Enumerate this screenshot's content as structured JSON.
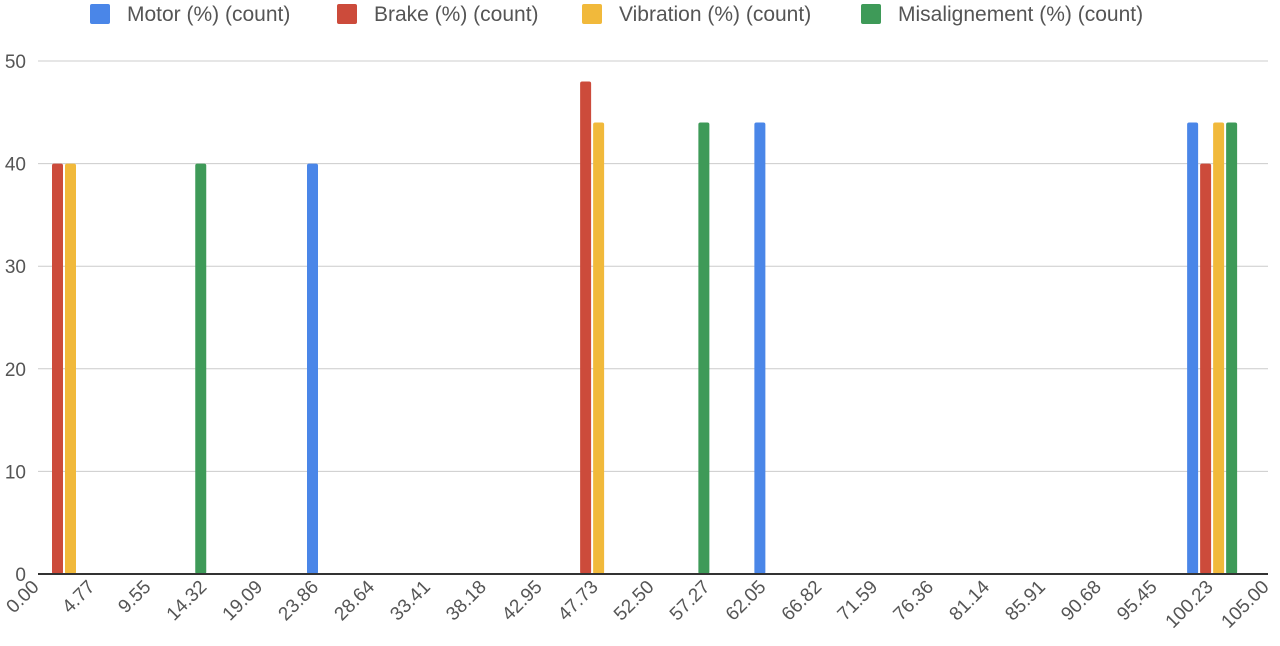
{
  "chart_data": {
    "type": "bar",
    "title": "",
    "xlabel": "",
    "ylabel": "",
    "ylim": [
      0,
      50
    ],
    "xlim": [
      0,
      105
    ],
    "grid": true,
    "legend_position": "top",
    "y_ticks": [
      "0",
      "10",
      "20",
      "30",
      "40",
      "50"
    ],
    "x_ticks": [
      "0.00",
      "4.77",
      "9.55",
      "14.32",
      "19.09",
      "23.86",
      "28.64",
      "33.41",
      "38.18",
      "42.95",
      "47.73",
      "52.50",
      "57.27",
      "62.05",
      "66.82",
      "71.59",
      "76.36",
      "81.14",
      "85.91",
      "90.68",
      "95.45",
      "100.23",
      "105.00"
    ],
    "series": [
      {
        "name": "Motor (%) (count)",
        "color": "#4a86e8",
        "points": [
          {
            "x": 23.86,
            "y": 40
          },
          {
            "x": 62.05,
            "y": 44
          },
          {
            "x": 100.23,
            "y": 44
          }
        ]
      },
      {
        "name": "Brake (%) (count)",
        "color": "#cc4b3b",
        "points": [
          {
            "x": 0.0,
            "y": 40
          },
          {
            "x": 47.73,
            "y": 48
          },
          {
            "x": 100.23,
            "y": 40
          }
        ]
      },
      {
        "name": "Vibration (%) (count)",
        "color": "#f1b93b",
        "points": [
          {
            "x": 0.0,
            "y": 40
          },
          {
            "x": 47.73,
            "y": 44
          },
          {
            "x": 100.23,
            "y": 44
          }
        ]
      },
      {
        "name": "Misalignement (%) (count)",
        "color": "#3e9a58",
        "points": [
          {
            "x": 14.32,
            "y": 40
          },
          {
            "x": 57.27,
            "y": 44
          },
          {
            "x": 100.23,
            "y": 44
          }
        ]
      }
    ]
  }
}
